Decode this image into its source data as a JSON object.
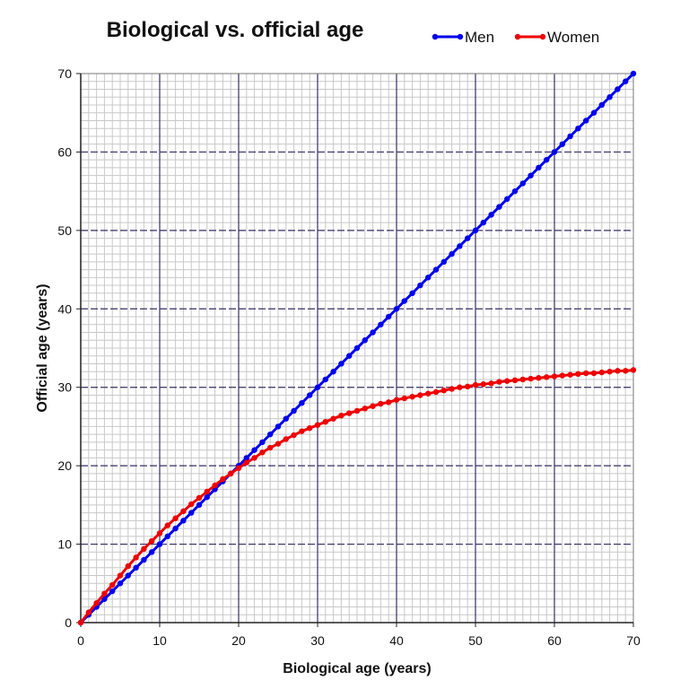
{
  "chart_data": {
    "type": "line",
    "title": "Biological vs. official age",
    "xlabel": "Biological age (years)",
    "ylabel": "Official age (years)",
    "xlim": [
      0,
      70
    ],
    "ylim": [
      0,
      70
    ],
    "xticks": [
      0,
      10,
      20,
      30,
      40,
      50,
      60,
      70
    ],
    "yticks": [
      0,
      10,
      20,
      30,
      40,
      50,
      60,
      70
    ],
    "grid": true,
    "legend_position": "top-right",
    "series": [
      {
        "name": "Men",
        "color": "#0000ee",
        "x": [
          0,
          1,
          2,
          3,
          4,
          5,
          6,
          7,
          8,
          9,
          10,
          11,
          12,
          13,
          14,
          15,
          16,
          17,
          18,
          19,
          20,
          21,
          22,
          23,
          24,
          25,
          26,
          27,
          28,
          29,
          30,
          31,
          32,
          33,
          34,
          35,
          36,
          37,
          38,
          39,
          40,
          41,
          42,
          43,
          44,
          45,
          46,
          47,
          48,
          49,
          50,
          51,
          52,
          53,
          54,
          55,
          56,
          57,
          58,
          59,
          60,
          61,
          62,
          63,
          64,
          65,
          66,
          67,
          68,
          69,
          70
        ],
        "y": [
          0,
          1,
          2,
          3,
          4,
          5,
          6,
          7,
          8,
          9,
          10,
          11,
          12,
          13,
          14,
          15,
          16,
          17,
          18,
          19,
          20,
          21,
          22,
          23,
          24,
          25,
          26,
          27,
          28,
          29,
          30,
          31,
          32,
          33,
          34,
          35,
          36,
          37,
          38,
          39,
          40,
          41,
          42,
          43,
          44,
          45,
          46,
          47,
          48,
          49,
          50,
          51,
          52,
          53,
          54,
          55,
          56,
          57,
          58,
          59,
          60,
          61,
          62,
          63,
          64,
          65,
          66,
          67,
          68,
          69,
          70
        ]
      },
      {
        "name": "Women",
        "color": "#ee0000",
        "x": [
          0,
          1,
          2,
          3,
          4,
          5,
          6,
          7,
          8,
          9,
          10,
          11,
          12,
          13,
          14,
          15,
          16,
          17,
          18,
          19,
          20,
          21,
          22,
          23,
          24,
          25,
          26,
          27,
          28,
          29,
          30,
          31,
          32,
          33,
          34,
          35,
          36,
          37,
          38,
          39,
          40,
          41,
          42,
          43,
          44,
          45,
          46,
          47,
          48,
          49,
          50,
          51,
          52,
          53,
          54,
          55,
          56,
          57,
          58,
          59,
          60,
          61,
          62,
          63,
          64,
          65,
          66,
          67,
          68,
          69,
          70
        ],
        "y": [
          0,
          1.3,
          2.5,
          3.7,
          4.8,
          6.0,
          7.2,
          8.3,
          9.4,
          10.4,
          11.4,
          12.4,
          13.3,
          14.2,
          15.1,
          15.9,
          16.7,
          17.5,
          18.3,
          19.0,
          19.7,
          20.4,
          21.0,
          21.7,
          22.3,
          22.8,
          23.4,
          23.9,
          24.4,
          24.8,
          25.2,
          25.6,
          26.0,
          26.4,
          26.7,
          27.0,
          27.3,
          27.6,
          27.9,
          28.1,
          28.4,
          28.6,
          28.8,
          29.0,
          29.2,
          29.4,
          29.6,
          29.8,
          30.0,
          30.1,
          30.3,
          30.4,
          30.5,
          30.7,
          30.8,
          30.9,
          31.0,
          31.1,
          31.2,
          31.3,
          31.4,
          31.5,
          31.6,
          31.7,
          31.8,
          31.8,
          31.9,
          32.0,
          32.1,
          32.1,
          32.2
        ]
      }
    ]
  }
}
